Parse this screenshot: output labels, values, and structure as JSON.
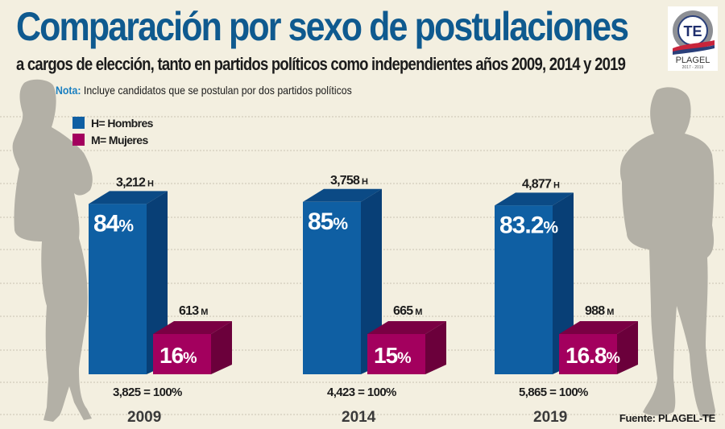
{
  "header": {
    "title": "Comparación por sexo de postulaciones",
    "subtitle": "a cargos de elección, tanto en partidos políticos como independientes años 2009, 2014 y 2019",
    "note_label": "Nota:",
    "note_text": " Incluye candidatos que se postulan por dos partidos políticos"
  },
  "logo": {
    "icon": "te-seal-icon",
    "initials": "TE",
    "ring_text": "Plan General de Elecciones",
    "name": "PLAGEL",
    "years": "2017 - 2019"
  },
  "source": "Fuente: PLAGEL-TE",
  "colors": {
    "men": "#0f5fa3",
    "men_top": "#0b4a85",
    "men_side": "#083f76",
    "women": "#a3005e",
    "women_top": "#7a0043",
    "women_side": "#6b003b",
    "silhouette": "#b3b0a6",
    "background": "#f3efe0"
  },
  "chart_data": {
    "type": "bar",
    "style": "3d-grouped",
    "title": "Comparación por sexo de postulaciones",
    "subtitle": "a cargos de elección, tanto en partidos políticos como independientes años 2009, 2014 y 2019",
    "xlabel": "",
    "ylabel": "",
    "grid": true,
    "legend_position": "top-left",
    "categories": [
      "2009",
      "2014",
      "2019"
    ],
    "legend": [
      {
        "key": "H",
        "label": "H= Hombres",
        "color": "#0f5fa3"
      },
      {
        "key": "M",
        "label": "M= Mujeres",
        "color": "#a3005e"
      }
    ],
    "series": [
      {
        "name": "Hombres",
        "key": "H",
        "values": [
          3212,
          3758,
          4877
        ],
        "count_labels": [
          "3,212",
          "3,758",
          "4,877"
        ],
        "percent": [
          84,
          85,
          83.2
        ],
        "percent_labels": [
          "84",
          "85",
          "83.2"
        ]
      },
      {
        "name": "Mujeres",
        "key": "M",
        "values": [
          613,
          665,
          988
        ],
        "count_labels": [
          "613",
          "665",
          "988"
        ],
        "percent": [
          16,
          15,
          16.8
        ],
        "percent_labels": [
          "16",
          "15",
          "16.8"
        ]
      }
    ],
    "totals": [
      3825,
      4423,
      5865
    ],
    "total_labels": [
      "3,825 = 100%",
      "4,423 = 100%",
      "5,865 = 100%"
    ],
    "percent_suffix": "%",
    "ylim": [
      0,
      100
    ]
  }
}
